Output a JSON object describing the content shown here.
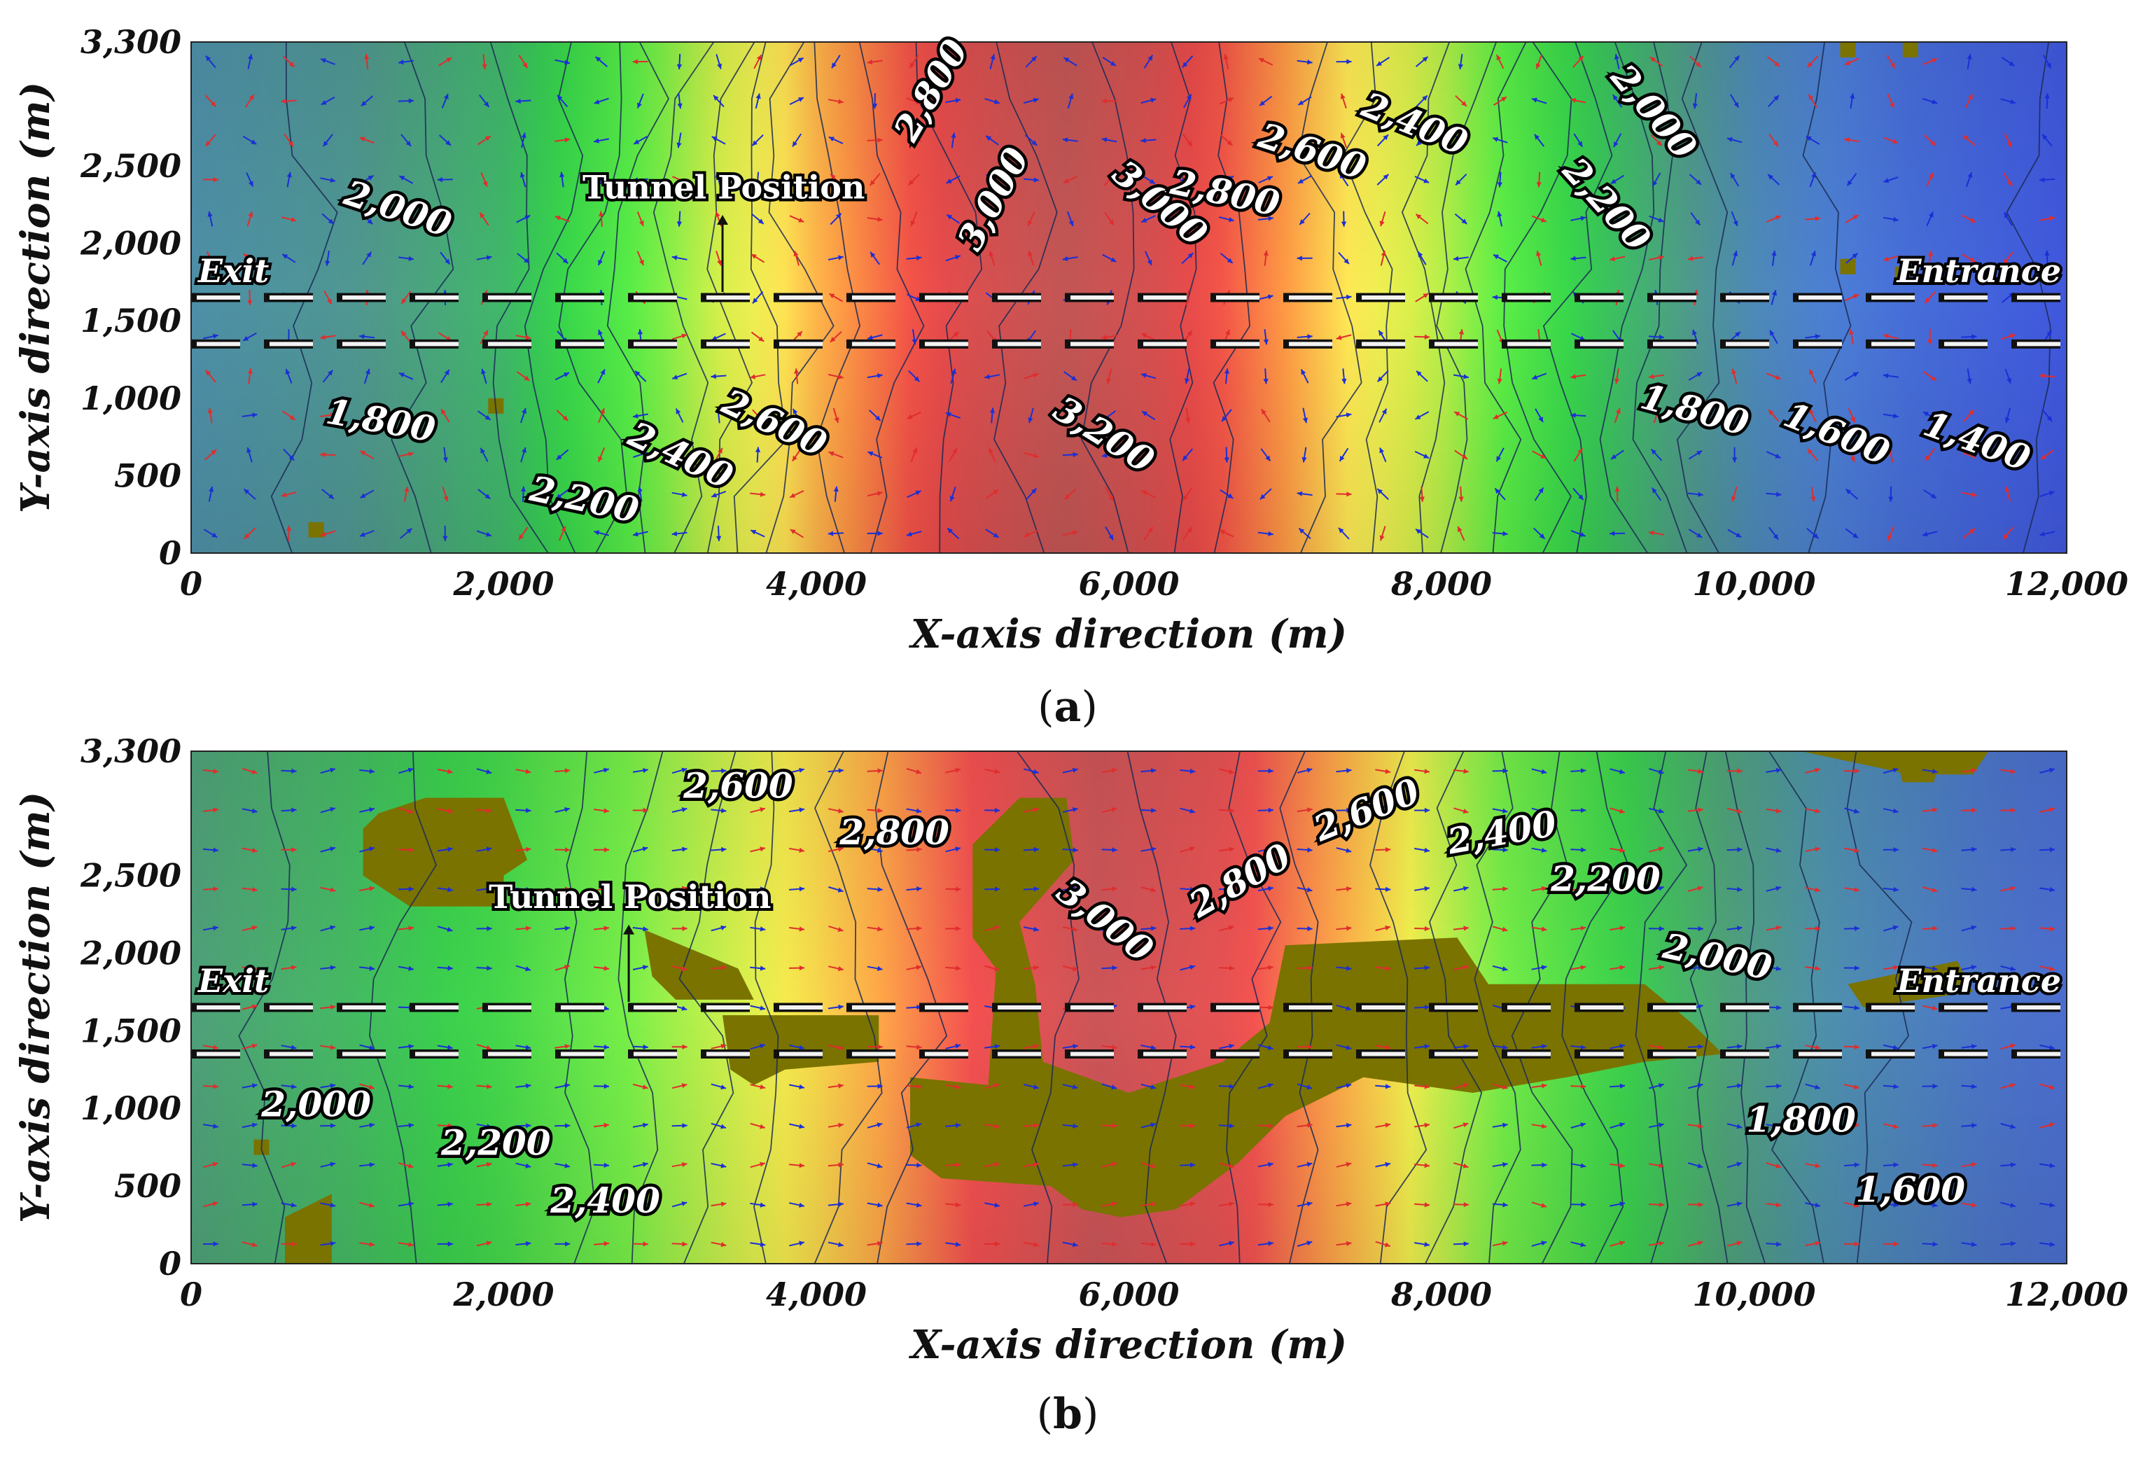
{
  "chart_data": [
    {
      "type": "heatmap",
      "panel_label": "a",
      "xlabel": "X-axis direction (m)",
      "ylabel": "Y-axis direction (m)",
      "xlim": [
        0,
        12000
      ],
      "ylim": [
        0,
        3300
      ],
      "x_ticks": [
        "0",
        "2,000",
        "4,000",
        "6,000",
        "8,000",
        "10,000",
        "12,000"
      ],
      "y_ticks": [
        "0",
        "500",
        "1,000",
        "1,500",
        "2,000",
        "2,500",
        "3,300"
      ],
      "tunnel_lines_y": [
        1650,
        1350
      ],
      "tunnel_label": "Tunnel Position",
      "exit_label": "Exit",
      "entrance_label": "Entrance",
      "color_stops": [
        {
          "v": 1300,
          "c": "#3b49e0"
        },
        {
          "v": 1600,
          "c": "#4c7fd6"
        },
        {
          "v": 1850,
          "c": "#4f9a8a"
        },
        {
          "v": 2100,
          "c": "#33d44c"
        },
        {
          "v": 2300,
          "c": "#5cf046"
        },
        {
          "v": 2500,
          "c": "#d6f04a"
        },
        {
          "v": 2650,
          "c": "#ffee55"
        },
        {
          "v": 2800,
          "c": "#ff9a45"
        },
        {
          "v": 2950,
          "c": "#f24848"
        },
        {
          "v": 3150,
          "c": "#c25655"
        }
      ],
      "profile_x": [
        0,
        1000,
        2000,
        3000,
        4000,
        5000,
        5600,
        6200,
        7000,
        8000,
        9000,
        10000,
        11000,
        12000
      ],
      "profile_value": [
        1750,
        1820,
        1980,
        2350,
        2750,
        3050,
        3150,
        3050,
        2800,
        2450,
        2050,
        1700,
        1500,
        1380
      ],
      "contour_labels": [
        {
          "text": "2,800",
          "x": 4800,
          "y": 2950,
          "rot": -60
        },
        {
          "text": "2,000",
          "x": 1300,
          "y": 2150,
          "rot": 18
        },
        {
          "text": "3,000",
          "x": 5200,
          "y": 2250,
          "rot": -62
        },
        {
          "text": "3,000",
          "x": 6150,
          "y": 2200,
          "rot": 40
        },
        {
          "text": "2,600",
          "x": 7150,
          "y": 2520,
          "rot": 18
        },
        {
          "text": "2,800",
          "x": 6600,
          "y": 2250,
          "rot": 12
        },
        {
          "text": "2,400",
          "x": 7800,
          "y": 2700,
          "rot": 22
        },
        {
          "text": "2,000",
          "x": 9300,
          "y": 2800,
          "rot": 50
        },
        {
          "text": "2,200",
          "x": 9000,
          "y": 2200,
          "rot": 48
        },
        {
          "text": "1,800",
          "x": 1200,
          "y": 780,
          "rot": 10
        },
        {
          "text": "2,600",
          "x": 3700,
          "y": 770,
          "rot": 25
        },
        {
          "text": "2,400",
          "x": 3100,
          "y": 560,
          "rot": 25
        },
        {
          "text": "2,200",
          "x": 2500,
          "y": 270,
          "rot": 12
        },
        {
          "text": "3,200",
          "x": 5800,
          "y": 700,
          "rot": 32
        },
        {
          "text": "1,800",
          "x": 9600,
          "y": 850,
          "rot": 15
        },
        {
          "text": "1,600",
          "x": 10500,
          "y": 700,
          "rot": 22
        },
        {
          "text": "1,400",
          "x": 11400,
          "y": 650,
          "rot": 20
        }
      ]
    },
    {
      "type": "heatmap",
      "panel_label": "b",
      "xlabel": "X-axis direction (m)",
      "ylabel": "Y-axis direction (m)",
      "xlim": [
        0,
        12000
      ],
      "ylim": [
        0,
        3300
      ],
      "x_ticks": [
        "0",
        "2,000",
        "4,000",
        "6,000",
        "8,000",
        "10,000",
        "12,000"
      ],
      "y_ticks": [
        "0",
        "500",
        "1,000",
        "1,500",
        "2,000",
        "2,500",
        "3,300"
      ],
      "tunnel_lines_y": [
        1650,
        1350
      ],
      "tunnel_label": "Tunnel Position",
      "exit_label": "Exit",
      "entrance_label": "Entrance",
      "color_stops": [
        {
          "v": 1500,
          "c": "#4a63d8"
        },
        {
          "v": 1750,
          "c": "#4e8fb0"
        },
        {
          "v": 1950,
          "c": "#4fa07a"
        },
        {
          "v": 2150,
          "c": "#3ad24c"
        },
        {
          "v": 2400,
          "c": "#78f048"
        },
        {
          "v": 2600,
          "c": "#f4f04e"
        },
        {
          "v": 2750,
          "c": "#ffa848"
        },
        {
          "v": 2900,
          "c": "#f45050"
        },
        {
          "v": 3050,
          "c": "#cc5558"
        }
      ],
      "profile_x": [
        0,
        1000,
        2000,
        3000,
        4000,
        5000,
        5800,
        6600,
        7500,
        8500,
        9500,
        10500,
        11500,
        12000
      ],
      "profile_value": [
        1950,
        2050,
        2200,
        2450,
        2650,
        2900,
        3050,
        2950,
        2700,
        2350,
        2050,
        1750,
        1600,
        1560
      ],
      "contour_labels": [
        {
          "text": "2,600",
          "x": 3500,
          "y": 3000,
          "rot": 0
        },
        {
          "text": "2,800",
          "x": 4500,
          "y": 2700,
          "rot": 0
        },
        {
          "text": "3,000",
          "x": 5800,
          "y": 2150,
          "rot": 38
        },
        {
          "text": "2,800",
          "x": 6750,
          "y": 2400,
          "rot": -30
        },
        {
          "text": "2,600",
          "x": 7550,
          "y": 2850,
          "rot": -22
        },
        {
          "text": "2,400",
          "x": 8400,
          "y": 2700,
          "rot": -10
        },
        {
          "text": "2,200",
          "x": 9050,
          "y": 2400,
          "rot": 0
        },
        {
          "text": "2,000",
          "x": 9750,
          "y": 1900,
          "rot": 12
        },
        {
          "text": "2,000",
          "x": 800,
          "y": 950,
          "rot": 0
        },
        {
          "text": "2,200",
          "x": 1950,
          "y": 700,
          "rot": 0
        },
        {
          "text": "2,400",
          "x": 2650,
          "y": 330,
          "rot": 0
        },
        {
          "text": "1,800",
          "x": 10300,
          "y": 850,
          "rot": 0
        },
        {
          "text": "1,600",
          "x": 11000,
          "y": 400,
          "rot": 0
        }
      ]
    }
  ],
  "colors": {
    "blocked_region": "#7a7300",
    "arrow_blue": "#1a2fd6",
    "arrow_red": "#e02d2d",
    "contour_line": "#1b2a55"
  }
}
